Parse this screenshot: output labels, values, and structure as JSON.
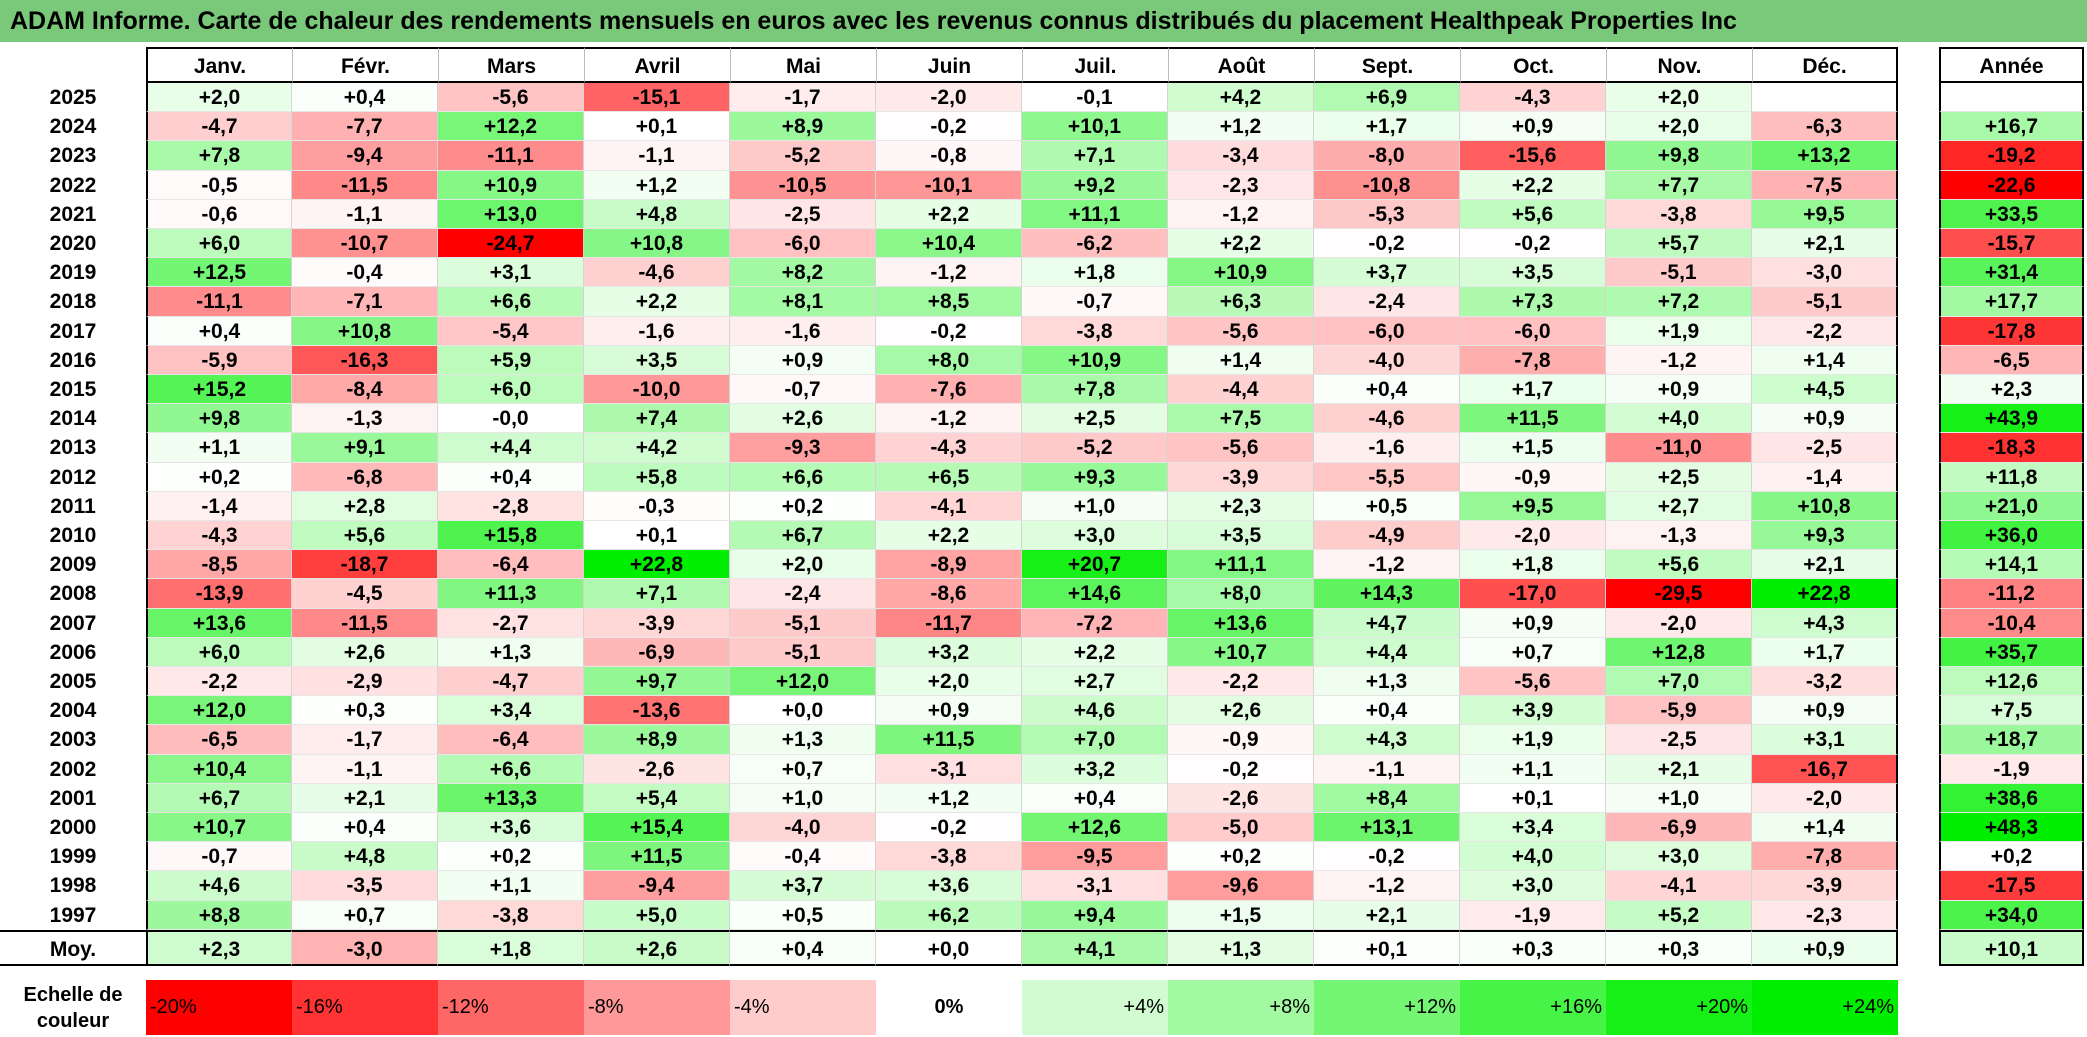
{
  "title": "ADAM Informe. Carte de chaleur des rendements mensuels en euros avec les revenus connus distribués du placement Healthpeak Properties Inc",
  "chart_data": {
    "type": "heatmap",
    "title": "ADAM Informe. Carte de chaleur des rendements mensuels en euros avec les revenus connus distribués du placement Healthpeak Properties Inc",
    "months": [
      "Janv.",
      "Févr.",
      "Mars",
      "Avril",
      "Mai",
      "Juin",
      "Juil.",
      "Août",
      "Sept.",
      "Oct.",
      "Nov.",
      "Déc."
    ],
    "year_header": "Année",
    "rows": [
      {
        "year": "2025",
        "values": [
          "+2,0",
          "+0,4",
          "-5,6",
          "-15,1",
          "-1,7",
          "-2,0",
          "-0,1",
          "+4,2",
          "+6,9",
          "-4,3",
          "+2,0",
          ""
        ],
        "annual": ""
      },
      {
        "year": "2024",
        "values": [
          "-4,7",
          "-7,7",
          "+12,2",
          "+0,1",
          "+8,9",
          "-0,2",
          "+10,1",
          "+1,2",
          "+1,7",
          "+0,9",
          "+2,0",
          "-6,3"
        ],
        "annual": "+16,7"
      },
      {
        "year": "2023",
        "values": [
          "+7,8",
          "-9,4",
          "-11,1",
          "-1,1",
          "-5,2",
          "-0,8",
          "+7,1",
          "-3,4",
          "-8,0",
          "-15,6",
          "+9,8",
          "+13,2"
        ],
        "annual": "-19,2"
      },
      {
        "year": "2022",
        "values": [
          "-0,5",
          "-11,5",
          "+10,9",
          "+1,2",
          "-10,5",
          "-10,1",
          "+9,2",
          "-2,3",
          "-10,8",
          "+2,2",
          "+7,7",
          "-7,5"
        ],
        "annual": "-22,6"
      },
      {
        "year": "2021",
        "values": [
          "-0,6",
          "-1,1",
          "+13,0",
          "+4,8",
          "-2,5",
          "+2,2",
          "+11,1",
          "-1,2",
          "-5,3",
          "+5,6",
          "-3,8",
          "+9,5"
        ],
        "annual": "+33,5"
      },
      {
        "year": "2020",
        "values": [
          "+6,0",
          "-10,7",
          "-24,7",
          "+10,8",
          "-6,0",
          "+10,4",
          "-6,2",
          "+2,2",
          "-0,2",
          "-0,2",
          "+5,7",
          "+2,1"
        ],
        "annual": "-15,7"
      },
      {
        "year": "2019",
        "values": [
          "+12,5",
          "-0,4",
          "+3,1",
          "-4,6",
          "+8,2",
          "-1,2",
          "+1,8",
          "+10,9",
          "+3,7",
          "+3,5",
          "-5,1",
          "-3,0"
        ],
        "annual": "+31,4"
      },
      {
        "year": "2018",
        "values": [
          "-11,1",
          "-7,1",
          "+6,6",
          "+2,2",
          "+8,1",
          "+8,5",
          "-0,7",
          "+6,3",
          "-2,4",
          "+7,3",
          "+7,2",
          "-5,1"
        ],
        "annual": "+17,7"
      },
      {
        "year": "2017",
        "values": [
          "+0,4",
          "+10,8",
          "-5,4",
          "-1,6",
          "-1,6",
          "-0,2",
          "-3,8",
          "-5,6",
          "-6,0",
          "-6,0",
          "+1,9",
          "-2,2"
        ],
        "annual": "-17,8"
      },
      {
        "year": "2016",
        "values": [
          "-5,9",
          "-16,3",
          "+5,9",
          "+3,5",
          "+0,9",
          "+8,0",
          "+10,9",
          "+1,4",
          "-4,0",
          "-7,8",
          "-1,2",
          "+1,4"
        ],
        "annual": "-6,5"
      },
      {
        "year": "2015",
        "values": [
          "+15,2",
          "-8,4",
          "+6,0",
          "-10,0",
          "-0,7",
          "-7,6",
          "+7,8",
          "-4,4",
          "+0,4",
          "+1,7",
          "+0,9",
          "+4,5"
        ],
        "annual": "+2,3"
      },
      {
        "year": "2014",
        "values": [
          "+9,8",
          "-1,3",
          "-0,0",
          "+7,4",
          "+2,6",
          "-1,2",
          "+2,5",
          "+7,5",
          "-4,6",
          "+11,5",
          "+4,0",
          "+0,9"
        ],
        "annual": "+43,9"
      },
      {
        "year": "2013",
        "values": [
          "+1,1",
          "+9,1",
          "+4,4",
          "+4,2",
          "-9,3",
          "-4,3",
          "-5,2",
          "-5,6",
          "-1,6",
          "+1,5",
          "-11,0",
          "-2,5"
        ],
        "annual": "-18,3"
      },
      {
        "year": "2012",
        "values": [
          "+0,2",
          "-6,8",
          "+0,4",
          "+5,8",
          "+6,6",
          "+6,5",
          "+9,3",
          "-3,9",
          "-5,5",
          "-0,9",
          "+2,5",
          "-1,4"
        ],
        "annual": "+11,8"
      },
      {
        "year": "2011",
        "values": [
          "-1,4",
          "+2,8",
          "-2,8",
          "-0,3",
          "+0,2",
          "-4,1",
          "+1,0",
          "+2,3",
          "+0,5",
          "+9,5",
          "+2,7",
          "+10,8"
        ],
        "annual": "+21,0"
      },
      {
        "year": "2010",
        "values": [
          "-4,3",
          "+5,6",
          "+15,8",
          "+0,1",
          "+6,7",
          "+2,2",
          "+3,0",
          "+3,5",
          "-4,9",
          "-2,0",
          "-1,3",
          "+9,3"
        ],
        "annual": "+36,0"
      },
      {
        "year": "2009",
        "values": [
          "-8,5",
          "-18,7",
          "-6,4",
          "+22,8",
          "+2,0",
          "-8,9",
          "+20,7",
          "+11,1",
          "-1,2",
          "+1,8",
          "+5,6",
          "+2,1"
        ],
        "annual": "+14,1"
      },
      {
        "year": "2008",
        "values": [
          "-13,9",
          "-4,5",
          "+11,3",
          "+7,1",
          "-2,4",
          "-8,6",
          "+14,6",
          "+8,0",
          "+14,3",
          "-17,0",
          "-29,5",
          "+22,8"
        ],
        "annual": "-11,2"
      },
      {
        "year": "2007",
        "values": [
          "+13,6",
          "-11,5",
          "-2,7",
          "-3,9",
          "-5,1",
          "-11,7",
          "-7,2",
          "+13,6",
          "+4,7",
          "+0,9",
          "-2,0",
          "+4,3"
        ],
        "annual": "-10,4"
      },
      {
        "year": "2006",
        "values": [
          "+6,0",
          "+2,6",
          "+1,3",
          "-6,9",
          "-5,1",
          "+3,2",
          "+2,2",
          "+10,7",
          "+4,4",
          "+0,7",
          "+12,8",
          "+1,7"
        ],
        "annual": "+35,7"
      },
      {
        "year": "2005",
        "values": [
          "-2,2",
          "-2,9",
          "-4,7",
          "+9,7",
          "+12,0",
          "+2,0",
          "+2,7",
          "-2,2",
          "+1,3",
          "-5,6",
          "+7,0",
          "-3,2"
        ],
        "annual": "+12,6"
      },
      {
        "year": "2004",
        "values": [
          "+12,0",
          "+0,3",
          "+3,4",
          "-13,6",
          "+0,0",
          "+0,9",
          "+4,6",
          "+2,6",
          "+0,4",
          "+3,9",
          "-5,9",
          "+0,9"
        ],
        "annual": "+7,5"
      },
      {
        "year": "2003",
        "values": [
          "-6,5",
          "-1,7",
          "-6,4",
          "+8,9",
          "+1,3",
          "+11,5",
          "+7,0",
          "-0,9",
          "+4,3",
          "+1,9",
          "-2,5",
          "+3,1"
        ],
        "annual": "+18,7"
      },
      {
        "year": "2002",
        "values": [
          "+10,4",
          "-1,1",
          "+6,6",
          "-2,6",
          "+0,7",
          "-3,1",
          "+3,2",
          "-0,2",
          "-1,1",
          "+1,1",
          "+2,1",
          "-16,7"
        ],
        "annual": "-1,9"
      },
      {
        "year": "2001",
        "values": [
          "+6,7",
          "+2,1",
          "+13,3",
          "+5,4",
          "+1,0",
          "+1,2",
          "+0,4",
          "-2,6",
          "+8,4",
          "+0,1",
          "+1,0",
          "-2,0"
        ],
        "annual": "+38,6"
      },
      {
        "year": "2000",
        "values": [
          "+10,7",
          "+0,4",
          "+3,6",
          "+15,4",
          "-4,0",
          "-0,2",
          "+12,6",
          "-5,0",
          "+13,1",
          "+3,4",
          "-6,9",
          "+1,4"
        ],
        "annual": "+48,3"
      },
      {
        "year": "1999",
        "values": [
          "-0,7",
          "+4,8",
          "+0,2",
          "+11,5",
          "-0,4",
          "-3,8",
          "-9,5",
          "+0,2",
          "-0,2",
          "+4,0",
          "+3,0",
          "-7,8"
        ],
        "annual": "+0,2"
      },
      {
        "year": "1998",
        "values": [
          "+4,6",
          "-3,5",
          "+1,1",
          "-9,4",
          "+3,7",
          "+3,6",
          "-3,1",
          "-9,6",
          "-1,2",
          "+3,0",
          "-4,1",
          "-3,9"
        ],
        "annual": "-17,5"
      },
      {
        "year": "1997",
        "values": [
          "+8,8",
          "+0,7",
          "-3,8",
          "+5,0",
          "+0,5",
          "+6,2",
          "+9,4",
          "+1,5",
          "+2,1",
          "-1,9",
          "+5,2",
          "-2,3"
        ],
        "annual": "+34,0"
      }
    ],
    "average": {
      "label": "Moy.",
      "values": [
        "+2,3",
        "-3,0",
        "+1,8",
        "+2,6",
        "+0,4",
        "+0,0",
        "+4,1",
        "+1,3",
        "+0,1",
        "+0,3",
        "+0,3",
        "+0,9"
      ],
      "annual": "+10,1"
    },
    "scale": {
      "label": "Echelle de couleur",
      "items": [
        "-20%",
        "-16%",
        "-12%",
        "-8%",
        "-4%",
        "0%",
        "+4%",
        "+8%",
        "+12%",
        "+16%",
        "+20%",
        "+24%"
      ],
      "numeric": [
        -20,
        -16,
        -12,
        -8,
        -4,
        0,
        4,
        8,
        12,
        16,
        20,
        24
      ]
    },
    "colors": {
      "negative": "#ff0000",
      "positive": "#00ee00",
      "neutral": "#ffffff",
      "title_bg": "#7ac87a"
    }
  }
}
